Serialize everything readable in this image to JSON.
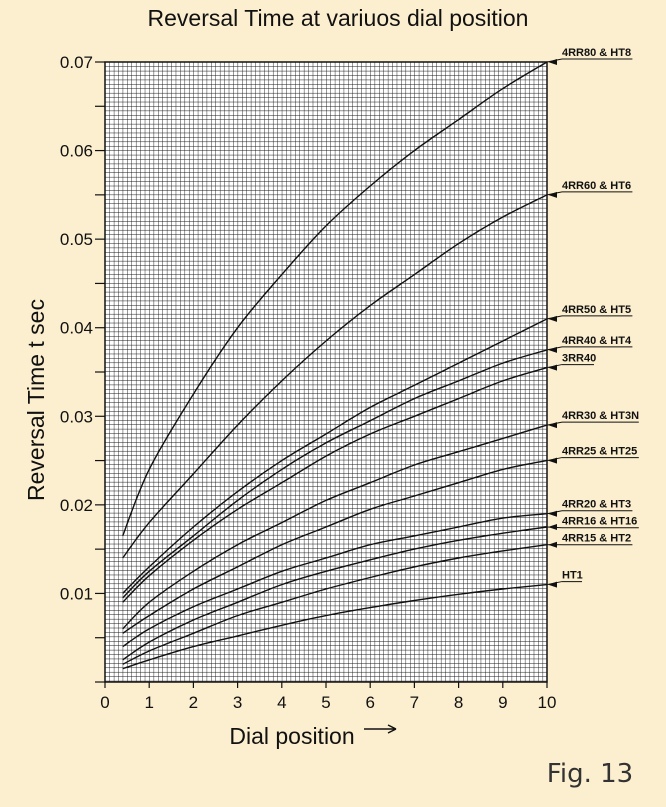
{
  "chart_data": {
    "type": "line",
    "title": "Reversal Time at variuos dial position",
    "xlabel": "Dial position",
    "ylabel": "Reversal Time t sec",
    "xlim": [
      0,
      10
    ],
    "ylim": [
      0,
      0.07
    ],
    "x_ticks": [
      "0",
      "1",
      "2",
      "3",
      "4",
      "5",
      "6",
      "7",
      "8",
      "9",
      "10"
    ],
    "y_ticks": [
      "0.01",
      "0.02",
      "0.03",
      "0.04",
      "0.05",
      "0.06",
      "0.07"
    ],
    "grid": true,
    "x": [
      0.4,
      1,
      2,
      3,
      4,
      5,
      6,
      7,
      8,
      9,
      10
    ],
    "series": [
      {
        "name": "4RR80 & HT8",
        "values": [
          0.0165,
          0.024,
          0.0325,
          0.04,
          0.046,
          0.0515,
          0.056,
          0.06,
          0.0635,
          0.067,
          0.07
        ]
      },
      {
        "name": "4RR60 & HT6",
        "values": [
          0.014,
          0.018,
          0.0235,
          0.029,
          0.034,
          0.0385,
          0.0425,
          0.046,
          0.0495,
          0.0525,
          0.055
        ]
      },
      {
        "name": "4RR50 & HT5",
        "values": [
          0.01,
          0.013,
          0.0175,
          0.0215,
          0.025,
          0.028,
          0.031,
          0.0335,
          0.036,
          0.0385,
          0.041
        ]
      },
      {
        "name": "4RR40 & HT4",
        "values": [
          0.0095,
          0.0125,
          0.0165,
          0.0205,
          0.024,
          0.027,
          0.0295,
          0.032,
          0.034,
          0.036,
          0.0375
        ]
      },
      {
        "name": "3RR40",
        "values": [
          0.009,
          0.012,
          0.016,
          0.0195,
          0.0225,
          0.0255,
          0.028,
          0.03,
          0.032,
          0.034,
          0.0355
        ]
      },
      {
        "name": "4RR30 & HT3N",
        "values": [
          0.006,
          0.009,
          0.0125,
          0.0155,
          0.018,
          0.0205,
          0.0225,
          0.0245,
          0.026,
          0.0275,
          0.029
        ]
      },
      {
        "name": "4RR25 & HT25",
        "values": [
          0.0055,
          0.0075,
          0.0105,
          0.013,
          0.0155,
          0.0175,
          0.0195,
          0.021,
          0.0225,
          0.024,
          0.025
        ]
      },
      {
        "name": "4RR20 & HT3",
        "values": [
          0.004,
          0.006,
          0.0085,
          0.0105,
          0.0125,
          0.014,
          0.0155,
          0.0165,
          0.0175,
          0.0185,
          0.019
        ]
      },
      {
        "name": "4RR16 & HT16",
        "values": [
          0.0025,
          0.0045,
          0.007,
          0.009,
          0.011,
          0.0125,
          0.0138,
          0.015,
          0.016,
          0.0168,
          0.0175
        ]
      },
      {
        "name": "4RR15 & HT2",
        "values": [
          0.002,
          0.0035,
          0.0055,
          0.0075,
          0.009,
          0.0105,
          0.0118,
          0.013,
          0.014,
          0.0148,
          0.0155
        ]
      },
      {
        "name": "HT1",
        "values": [
          0.0015,
          0.0025,
          0.004,
          0.0052,
          0.0064,
          0.0075,
          0.0084,
          0.0092,
          0.0099,
          0.0105,
          0.011
        ]
      }
    ]
  },
  "figure_label": "Fig. 13",
  "colors": {
    "background": "#fcefcf",
    "grid": "#1a1a1a",
    "plot_bg": "#ffffff",
    "ink": "#111111"
  }
}
